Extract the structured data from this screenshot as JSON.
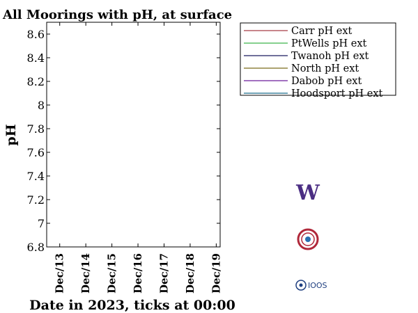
{
  "chart_data": {
    "type": "line",
    "title": "All Moorings with pH, at surface",
    "xlabel": "Date in 2023, ticks at 00:00",
    "ylabel": "pH",
    "ylim": [
      6.8,
      8.7
    ],
    "yticks": [
      6.8,
      7,
      7.2,
      7.4,
      7.6,
      7.8,
      8,
      8.2,
      8.4,
      8.6
    ],
    "ytick_labels": [
      "6.8",
      "7",
      "7.2",
      "7.4",
      "7.6",
      "7.8",
      "8",
      "8.2",
      "8.4",
      "8.6"
    ],
    "xlim": [
      12.5,
      19.15
    ],
    "xticks": [
      13,
      14,
      15,
      16,
      17,
      18,
      19
    ],
    "xtick_labels": [
      "Dec/13",
      "Dec/14",
      "Dec/15",
      "Dec/16",
      "Dec/17",
      "Dec/18",
      "Dec/19"
    ],
    "legend_position": "right",
    "series": [
      {
        "name": "Carr pH ext",
        "color": "#a83c46",
        "values": []
      },
      {
        "name": "PtWells pH ext",
        "color": "#3cb44b",
        "values": []
      },
      {
        "name": "Twanoh pH ext",
        "color": "#1a1a5e",
        "values": []
      },
      {
        "name": "North pH ext",
        "color": "#7a6a1a",
        "values": []
      },
      {
        "name": "Dabob pH ext",
        "color": "#6a1a9a",
        "values": []
      },
      {
        "name": "Hoodsport pH ext",
        "color": "#1a6a8a",
        "values": []
      }
    ]
  },
  "logos": {
    "uw": {
      "text": "W",
      "color": "#4b2e83"
    },
    "ioos": {
      "text": "IOOS",
      "color": "#1f3f80"
    },
    "seal_color": "#b0283a"
  }
}
